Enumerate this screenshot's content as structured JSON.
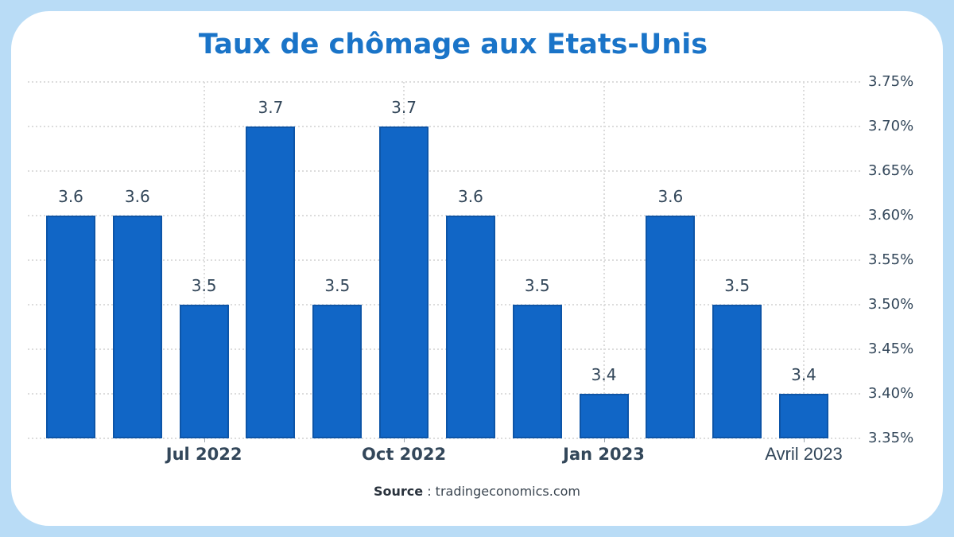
{
  "page": {
    "background_color": "#b9dcf6",
    "card_color": "#ffffff"
  },
  "header": {
    "title": "Taux de chômage aux Etats-Unis",
    "title_color": "#1a74c8"
  },
  "source": {
    "label_bold": "Source",
    "label_rest": " : tradingeconomics.com"
  },
  "chart_data": {
    "type": "bar",
    "title": "Taux de chômage aux Etats-Unis",
    "ylabel": "",
    "xlabel": "",
    "unit": "%",
    "values": [
      3.6,
      3.6,
      3.5,
      3.7,
      3.5,
      3.7,
      3.6,
      3.5,
      3.4,
      3.6,
      3.5,
      3.4
    ],
    "bar_labels": [
      "3.6",
      "3.6",
      "3.5",
      "3.7",
      "3.5",
      "3.7",
      "3.6",
      "3.5",
      "3.4",
      "3.6",
      "3.5",
      "3.4"
    ],
    "x_ticks": [
      {
        "label": "Jul 2022",
        "bar_index": 2,
        "alt_font": false
      },
      {
        "label": "Oct 2022",
        "bar_index": 5,
        "alt_font": false
      },
      {
        "label": "Jan 2023",
        "bar_index": 8,
        "alt_font": false
      },
      {
        "label": "Avril 2023",
        "bar_index": 11,
        "alt_font": true
      }
    ],
    "y_ticks": [
      "3.35%",
      "3.40%",
      "3.45%",
      "3.50%",
      "3.55%",
      "3.60%",
      "3.65%",
      "3.70%",
      "3.75%"
    ],
    "ylim": [
      3.35,
      3.75
    ],
    "y_step": 0.05,
    "grid": true,
    "legend_position": "none",
    "bar_color": "#1166c6",
    "bar_border_color": "#0d55a8",
    "grid_color": "#dcdcdc",
    "axis_label_color": "#33475a"
  }
}
